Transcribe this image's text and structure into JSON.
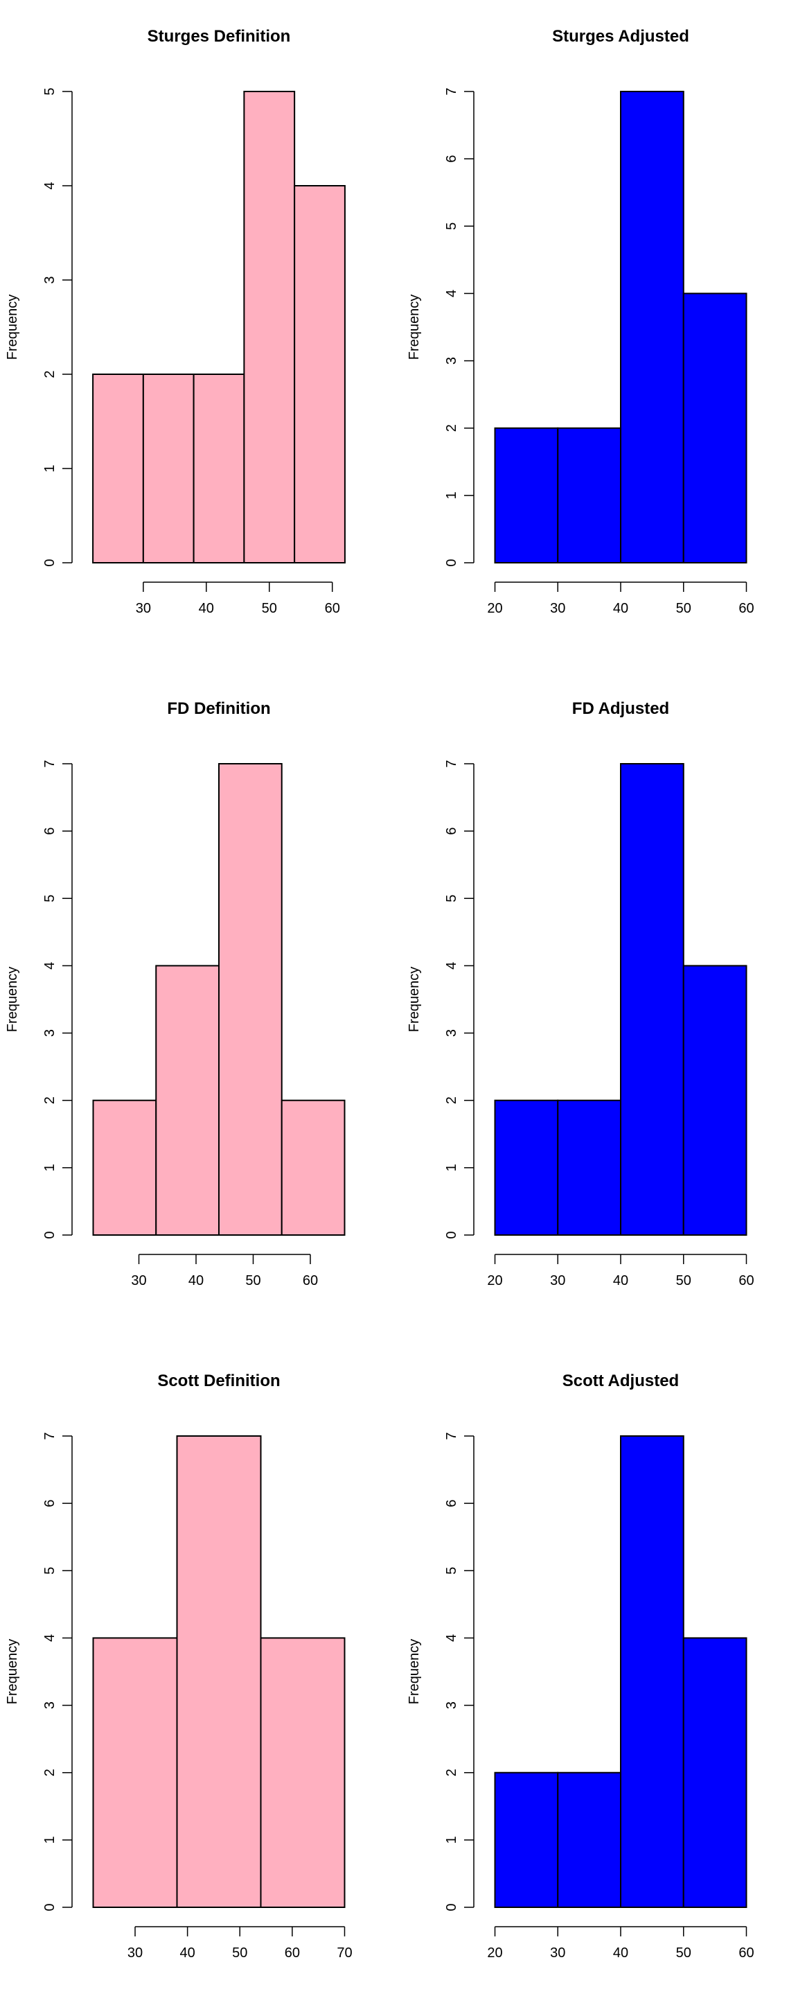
{
  "chart_data": [
    {
      "type": "bar",
      "title": "Sturges Definition",
      "ylabel": "Frequency",
      "xlabel": "",
      "fill": "#ffb0c0",
      "bins": [
        {
          "from": 22,
          "to": 30,
          "count": 2
        },
        {
          "from": 30,
          "to": 38,
          "count": 2
        },
        {
          "from": 38,
          "to": 46,
          "count": 2
        },
        {
          "from": 46,
          "to": 54,
          "count": 5
        },
        {
          "from": 54,
          "to": 62,
          "count": 4
        }
      ],
      "xticks": [
        30,
        40,
        50,
        60
      ],
      "yticks": [
        0,
        1,
        2,
        3,
        4,
        5
      ],
      "ylim": [
        0,
        5
      ]
    },
    {
      "type": "bar",
      "title": "Sturges Adjusted",
      "ylabel": "Frequency",
      "xlabel": "",
      "fill": "#0000ff",
      "bins": [
        {
          "from": 20,
          "to": 30,
          "count": 2
        },
        {
          "from": 30,
          "to": 40,
          "count": 2
        },
        {
          "from": 40,
          "to": 50,
          "count": 7
        },
        {
          "from": 50,
          "to": 60,
          "count": 4
        }
      ],
      "xticks": [
        20,
        30,
        40,
        50,
        60
      ],
      "yticks": [
        0,
        1,
        2,
        3,
        4,
        5,
        6,
        7
      ],
      "ylim": [
        0,
        7
      ]
    },
    {
      "type": "bar",
      "title": "FD Definition",
      "ylabel": "Frequency",
      "xlabel": "",
      "fill": "#ffb0c0",
      "bins": [
        {
          "from": 22,
          "to": 33,
          "count": 2
        },
        {
          "from": 33,
          "to": 44,
          "count": 4
        },
        {
          "from": 44,
          "to": 55,
          "count": 7
        },
        {
          "from": 55,
          "to": 66,
          "count": 2
        }
      ],
      "xticks": [
        30,
        40,
        50,
        60
      ],
      "yticks": [
        0,
        1,
        2,
        3,
        4,
        5,
        6,
        7
      ],
      "ylim": [
        0,
        7
      ]
    },
    {
      "type": "bar",
      "title": "FD Adjusted",
      "ylabel": "Frequency",
      "xlabel": "",
      "fill": "#0000ff",
      "bins": [
        {
          "from": 20,
          "to": 30,
          "count": 2
        },
        {
          "from": 30,
          "to": 40,
          "count": 2
        },
        {
          "from": 40,
          "to": 50,
          "count": 7
        },
        {
          "from": 50,
          "to": 60,
          "count": 4
        }
      ],
      "xticks": [
        20,
        30,
        40,
        50,
        60
      ],
      "yticks": [
        0,
        1,
        2,
        3,
        4,
        5,
        6,
        7
      ],
      "ylim": [
        0,
        7
      ]
    },
    {
      "type": "bar",
      "title": "Scott Definition",
      "ylabel": "Frequency",
      "xlabel": "",
      "fill": "#ffb0c0",
      "bins": [
        {
          "from": 22,
          "to": 38,
          "count": 4
        },
        {
          "from": 38,
          "to": 54,
          "count": 7
        },
        {
          "from": 54,
          "to": 70,
          "count": 4
        }
      ],
      "xticks": [
        30,
        40,
        50,
        60,
        70
      ],
      "yticks": [
        0,
        1,
        2,
        3,
        4,
        5,
        6,
        7
      ],
      "ylim": [
        0,
        7
      ]
    },
    {
      "type": "bar",
      "title": "Scott Adjusted",
      "ylabel": "Frequency",
      "xlabel": "",
      "fill": "#0000ff",
      "bins": [
        {
          "from": 20,
          "to": 30,
          "count": 2
        },
        {
          "from": 30,
          "to": 40,
          "count": 2
        },
        {
          "from": 40,
          "to": 50,
          "count": 7
        },
        {
          "from": 50,
          "to": 60,
          "count": 4
        }
      ],
      "xticks": [
        20,
        30,
        40,
        50,
        60
      ],
      "yticks": [
        0,
        1,
        2,
        3,
        4,
        5,
        6,
        7
      ],
      "ylim": [
        0,
        7
      ]
    }
  ]
}
